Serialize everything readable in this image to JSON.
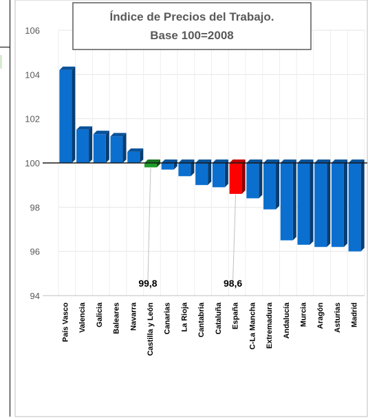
{
  "chart_data": {
    "type": "bar",
    "title": "Índice de Precios del Trabajo.",
    "subtitle": "Base 100=2008",
    "xlabel": "",
    "ylabel": "",
    "ylim": [
      94,
      106
    ],
    "yticks": [
      94,
      96,
      98,
      100,
      102,
      104,
      106
    ],
    "baseline": 100,
    "grid": true,
    "legend": "none",
    "categories": [
      "País Vasco",
      "Valencia",
      "Galicia",
      "Baleares",
      "Navarra",
      "Castilla y León",
      "Canarias",
      "La Rioja",
      "Cantabria",
      "Cataluña",
      "España",
      "C-La Mancha",
      "Extremadura",
      "Andalucía",
      "Murcia",
      "Aragón",
      "Asturias",
      "Madrid"
    ],
    "values": [
      104.2,
      101.5,
      101.3,
      101.2,
      100.5,
      99.8,
      99.7,
      99.4,
      99.0,
      98.9,
      98.6,
      98.4,
      97.9,
      96.5,
      96.3,
      96.2,
      96.2,
      96.0
    ],
    "colors": {
      "default": "#0b6fcf",
      "highlight_castilla": "#1f9d2a",
      "highlight_espana": "#ff0000"
    },
    "highlights": {
      "Castilla y León": "highlight_castilla",
      "España": "highlight_espana"
    },
    "annotations": [
      {
        "category": "Castilla y León",
        "text": "99,8"
      },
      {
        "category": "España",
        "text": "98,6"
      }
    ]
  }
}
